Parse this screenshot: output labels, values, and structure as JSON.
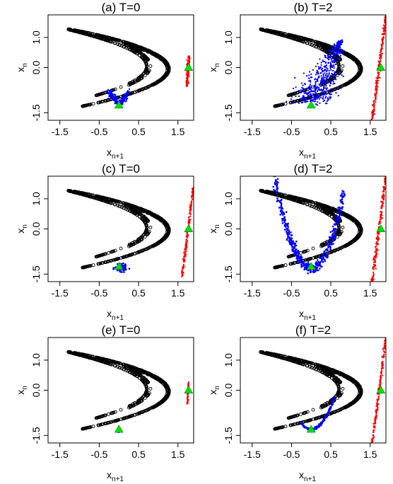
{
  "figure": {
    "panel_count": 6
  },
  "chart_data": [
    {
      "type": "scatter",
      "title": "(a) T=0",
      "xlabel": "x",
      "xlabel_sub": "n+1",
      "ylabel": "x",
      "ylabel_sub": "n",
      "xlim": [
        -1.8,
        1.9
      ],
      "ylim": [
        -1.75,
        1.75
      ],
      "xticks": [
        "-1.5",
        "-0.5",
        "0.5",
        "1.5"
      ],
      "xtick_values": [
        -1.5,
        -0.5,
        0.5,
        1.5
      ],
      "yticks": [
        "-1.5",
        "0.0",
        "1.0"
      ],
      "ytick_values": [
        -1.5,
        0.0,
        1.0
      ],
      "grid": false,
      "series": [
        {
          "role": "attractor",
          "color": "#000000",
          "shape": "open-circle",
          "function": "henon",
          "a": 1.4,
          "b": 0.3
        },
        {
          "role": "cloud",
          "color": "#0000ff",
          "shape": "v-cloud",
          "center": [
            0.0,
            -1.25
          ],
          "spread": [
            0.25,
            0.45
          ],
          "n": 220
        },
        {
          "role": "line",
          "color": "#ff0000",
          "shape": "thin-band",
          "p1": [
            1.72,
            -0.62
          ],
          "p2": [
            1.78,
            0.38
          ],
          "width": 0.04,
          "n": 140
        },
        {
          "role": "marker",
          "color": "#00e000",
          "shape": "triangle",
          "points": [
            [
              0.0,
              -1.25
            ],
            [
              1.77,
              0.0
            ]
          ]
        }
      ]
    },
    {
      "type": "scatter",
      "title": "(b) T=2",
      "xlabel": "x",
      "xlabel_sub": "n+1",
      "ylabel": "x",
      "ylabel_sub": "n",
      "xlim": [
        -1.8,
        1.9
      ],
      "ylim": [
        -1.75,
        1.75
      ],
      "xticks": [
        "-1.5",
        "-0.5",
        "0.5",
        "1.5"
      ],
      "xtick_values": [
        -1.5,
        -0.5,
        0.5,
        1.5
      ],
      "yticks": [
        "-1.5",
        "0.0",
        "1.0"
      ],
      "ytick_values": [
        -1.5,
        0.0,
        1.0
      ],
      "grid": false,
      "series": [
        {
          "role": "attractor",
          "color": "#000000",
          "shape": "open-circle",
          "function": "henon",
          "a": 1.4,
          "b": 0.3
        },
        {
          "role": "cloud",
          "color": "#0000ff",
          "shape": "fan-cloud",
          "center": [
            0.0,
            -1.25
          ],
          "tip": [
            0.75,
            0.9
          ],
          "spread": [
            0.45,
            0.3
          ],
          "n": 500
        },
        {
          "role": "line",
          "color": "#ff0000",
          "shape": "thin-band",
          "p1": [
            1.55,
            -1.75
          ],
          "p2": [
            1.9,
            1.75
          ],
          "width": 0.04,
          "n": 220
        },
        {
          "role": "marker",
          "color": "#00e000",
          "shape": "triangle",
          "points": [
            [
              0.0,
              -1.25
            ],
            [
              1.77,
              0.0
            ]
          ]
        }
      ]
    },
    {
      "type": "scatter",
      "title": "(c) T=0",
      "xlabel": "x",
      "xlabel_sub": "n+1",
      "ylabel": "x",
      "ylabel_sub": "n",
      "xlim": [
        -1.8,
        1.9
      ],
      "ylim": [
        -1.75,
        1.75
      ],
      "xticks": [
        "-1.5",
        "-0.5",
        "0.5",
        "1.5"
      ],
      "xtick_values": [
        -1.5,
        -0.5,
        0.5,
        1.5
      ],
      "yticks": [
        "-1.5",
        "0.0",
        "1.0"
      ],
      "ytick_values": [
        -1.5,
        0.0,
        1.0
      ],
      "grid": false,
      "series": [
        {
          "role": "attractor",
          "color": "#000000",
          "shape": "open-circle",
          "function": "henon",
          "a": 1.4,
          "b": 0.3
        },
        {
          "role": "cloud",
          "color": "#0000ff",
          "shape": "blob",
          "center": [
            0.05,
            -1.3
          ],
          "spread": [
            0.12,
            0.09
          ],
          "n": 120
        },
        {
          "role": "line",
          "color": "#ff0000",
          "shape": "thin-band",
          "p1": [
            1.6,
            -1.6
          ],
          "p2": [
            1.9,
            1.45
          ],
          "width": 0.03,
          "n": 200
        },
        {
          "role": "marker",
          "color": "#00e000",
          "shape": "triangle",
          "points": [
            [
              0.0,
              -1.25
            ],
            [
              1.77,
              0.0
            ]
          ]
        }
      ]
    },
    {
      "type": "scatter",
      "title": "(d) T=2",
      "xlabel": "x",
      "xlabel_sub": "n+1",
      "ylabel": "x",
      "ylabel_sub": "n",
      "xlim": [
        -1.8,
        1.9
      ],
      "ylim": [
        -1.75,
        1.75
      ],
      "xticks": [
        "-1.5",
        "-0.5",
        "0.5",
        "1.5"
      ],
      "xtick_values": [
        -1.5,
        -0.5,
        0.5,
        1.5
      ],
      "yticks": [
        "-1.5",
        "0.0",
        "1.0"
      ],
      "ytick_values": [
        -1.5,
        0.0,
        1.0
      ],
      "grid": false,
      "series": [
        {
          "role": "attractor",
          "color": "#000000",
          "shape": "open-circle",
          "function": "henon",
          "a": 1.4,
          "b": 0.3
        },
        {
          "role": "parabola",
          "color": "#0000ff",
          "shape": "thick-curve",
          "vertex": [
            0.0,
            -1.3
          ],
          "k": 3.5,
          "xrange": [
            -1.0,
            0.85
          ],
          "width": 0.08,
          "n": 450
        },
        {
          "role": "line",
          "color": "#ff0000",
          "shape": "thin-band",
          "p1": [
            1.55,
            -1.75
          ],
          "p2": [
            1.9,
            1.75
          ],
          "width": 0.04,
          "n": 220
        },
        {
          "role": "marker",
          "color": "#00e000",
          "shape": "triangle",
          "points": [
            [
              0.0,
              -1.25
            ],
            [
              1.77,
              0.0
            ]
          ]
        }
      ]
    },
    {
      "type": "scatter",
      "title": "(e) T=0",
      "xlabel": "x",
      "xlabel_sub": "n+1",
      "ylabel": "x",
      "ylabel_sub": "n",
      "xlim": [
        -1.8,
        1.9
      ],
      "ylim": [
        -1.75,
        1.75
      ],
      "xticks": [
        "-1.5",
        "-0.5",
        "0.5",
        "1.5"
      ],
      "xtick_values": [
        -1.5,
        -0.5,
        0.5,
        1.5
      ],
      "yticks": [
        "-1.5",
        "0.0",
        "1.0"
      ],
      "ytick_values": [
        -1.5,
        0.0,
        1.0
      ],
      "grid": false,
      "series": [
        {
          "role": "attractor",
          "color": "#000000",
          "shape": "open-circle",
          "function": "henon",
          "a": 1.4,
          "b": 0.3
        },
        {
          "role": "cloud",
          "color": "#0000ff",
          "shape": "blob",
          "center": [
            0.0,
            -1.35
          ],
          "spread": [
            0.04,
            0.03
          ],
          "n": 30
        },
        {
          "role": "line",
          "color": "#ff0000",
          "shape": "thin-band",
          "p1": [
            1.74,
            -0.45
          ],
          "p2": [
            1.77,
            0.3
          ],
          "width": 0.015,
          "n": 60
        },
        {
          "role": "marker",
          "color": "#00e000",
          "shape": "triangle",
          "points": [
            [
              0.0,
              -1.3
            ],
            [
              1.77,
              0.0
            ]
          ]
        }
      ]
    },
    {
      "type": "scatter",
      "title": "(f) T=2",
      "xlabel": "x",
      "xlabel_sub": "n+1",
      "ylabel": "x",
      "ylabel_sub": "n",
      "xlim": [
        -1.8,
        1.9
      ],
      "ylim": [
        -1.75,
        1.75
      ],
      "xticks": [
        "-1.5",
        "-0.5",
        "0.5",
        "1.5"
      ],
      "xtick_values": [
        -1.5,
        -0.5,
        0.5,
        1.5
      ],
      "yticks": [
        "-1.5",
        "0.0",
        "1.0"
      ],
      "ytick_values": [
        -1.5,
        0.0,
        1.0
      ],
      "grid": false,
      "series": [
        {
          "role": "attractor",
          "color": "#000000",
          "shape": "open-circle",
          "function": "henon",
          "a": 1.4,
          "b": 0.3
        },
        {
          "role": "curve",
          "color": "#0000ff",
          "shape": "thin-curve",
          "vertex": [
            0.0,
            -1.3
          ],
          "k": 3.0,
          "xrange": [
            -0.25,
            0.6
          ],
          "width": 0.02,
          "n": 160
        },
        {
          "role": "line",
          "color": "#ff0000",
          "shape": "thin-band",
          "p1": [
            1.55,
            -1.75
          ],
          "p2": [
            1.9,
            1.75
          ],
          "width": 0.03,
          "n": 200
        },
        {
          "role": "marker",
          "color": "#00e000",
          "shape": "triangle",
          "points": [
            [
              0.0,
              -1.3
            ],
            [
              1.77,
              0.0
            ]
          ]
        }
      ]
    }
  ]
}
